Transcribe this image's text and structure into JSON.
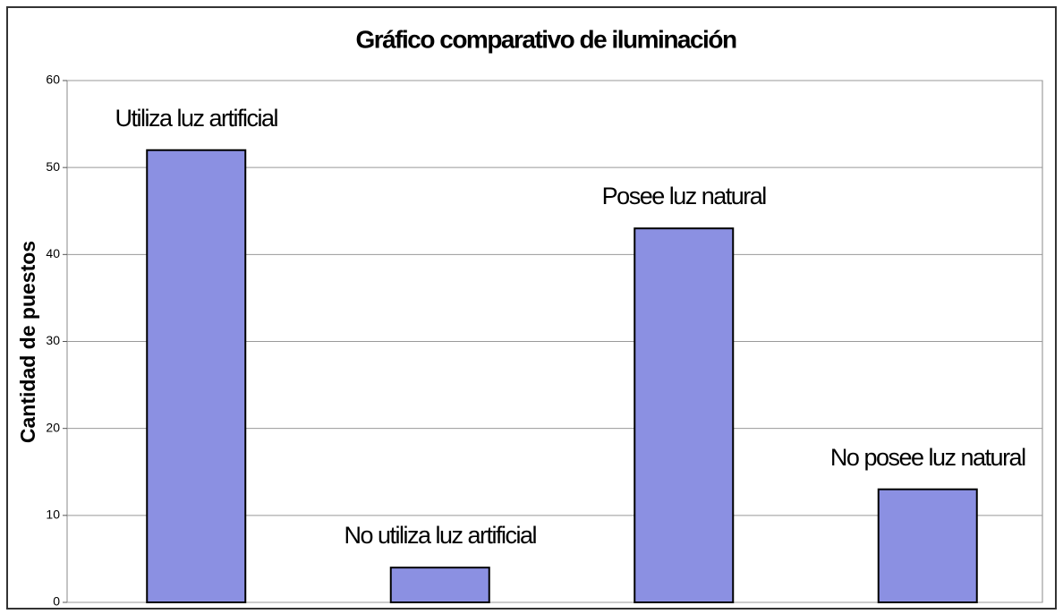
{
  "chart_data": {
    "type": "bar",
    "title": "Gráfico comparativo de iluminación",
    "ylabel": "Cantidad de puestos",
    "categories": [
      "Utiliza luz artificial",
      "No utiliza luz artificial",
      "Posee luz natural",
      "No posee luz natural"
    ],
    "values": [
      52,
      4,
      43,
      13
    ],
    "color": "#8b90e2",
    "ylim": [
      0,
      60
    ],
    "yticks": [
      0,
      10,
      20,
      30,
      40,
      50,
      60
    ],
    "grid": true
  }
}
